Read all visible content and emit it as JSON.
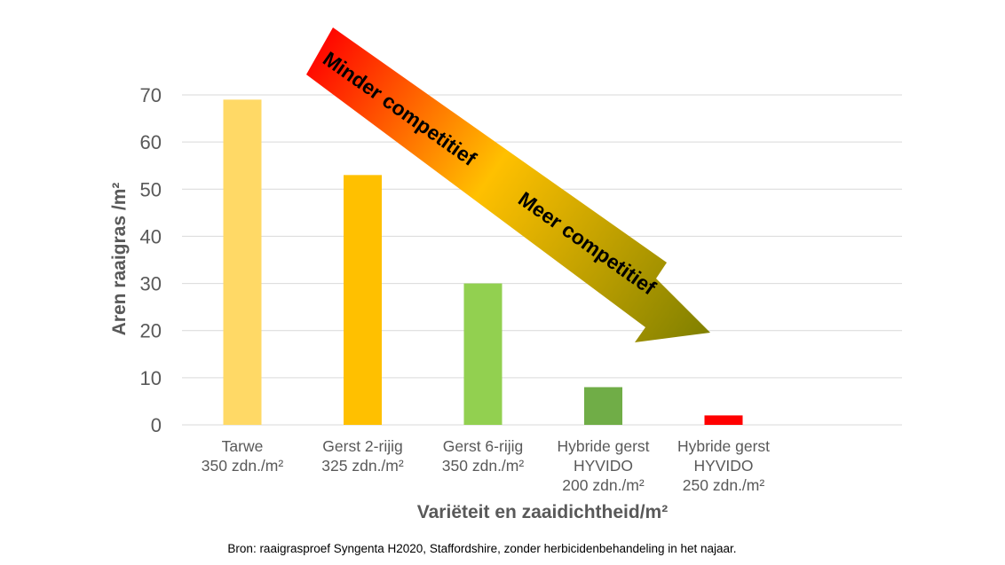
{
  "chart_data": {
    "type": "bar",
    "categories": [
      [
        "Tarwe",
        "350 zdn./m²"
      ],
      [
        "Gerst 2-rijig",
        "325 zdn./m²"
      ],
      [
        "Gerst 6-rijig",
        "350 zdn./m²"
      ],
      [
        "Hybride gerst",
        "HYVIDO",
        "200 zdn./m²"
      ],
      [
        "Hybride gerst",
        "HYVIDO",
        "250 zdn./m²"
      ]
    ],
    "values": [
      69,
      53,
      30,
      8,
      2
    ],
    "bar_colors": [
      "#FFD966",
      "#FFC000",
      "#92D050",
      "#70AD47",
      "#FF0000"
    ],
    "xlabel": "Variëteit en zaaidichtheid/m²",
    "ylabel": "Aren raaigras /m²",
    "ylim": [
      0,
      70
    ],
    "yticks": [
      0,
      10,
      20,
      30,
      40,
      50,
      60,
      70
    ],
    "grid": true,
    "annotations": {
      "arrow_start_label": "Minder competitief",
      "arrow_end_label": "Meer competitief",
      "gradient_colors": [
        "#FF0000",
        "#FFC000",
        "#808000"
      ]
    }
  },
  "source": "Bron: raaigrasproef Syngenta H2020, Staffordshire, zonder herbicidenbehandeling in het najaar."
}
